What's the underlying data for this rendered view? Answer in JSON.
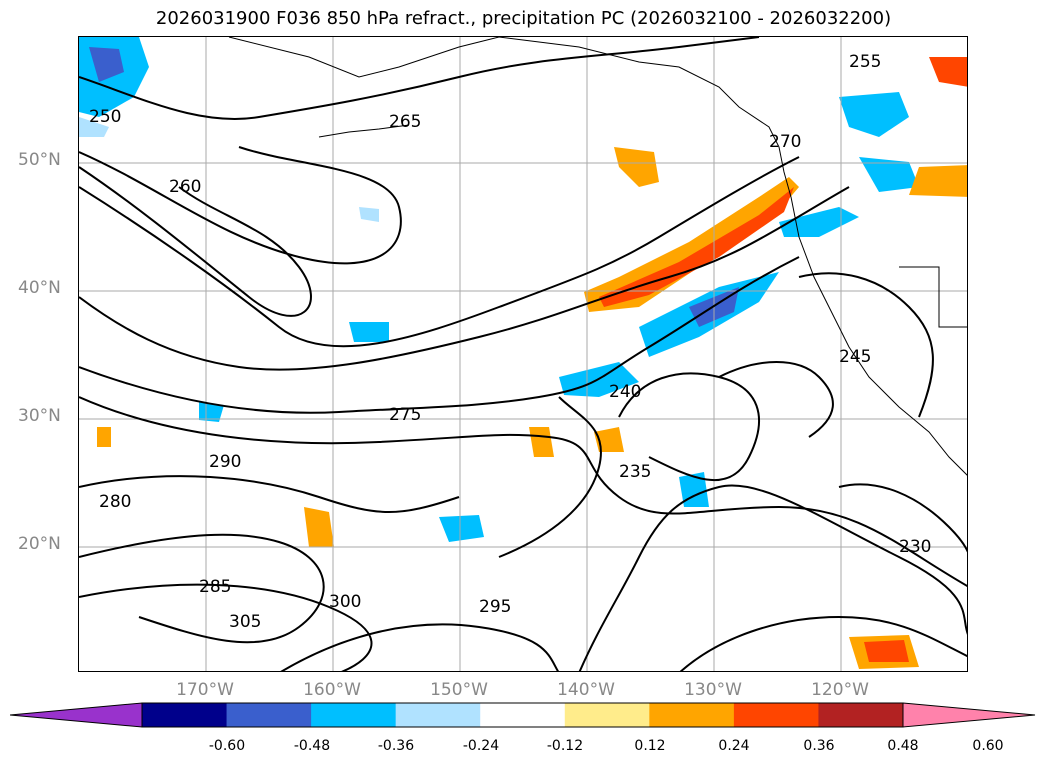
{
  "title": "2026031900 F036 850 hPa refract., precipitation PC (2026032100 - 2026032200)",
  "lat_labels": [
    "50°N",
    "40°N",
    "30°N",
    "20°N"
  ],
  "lon_labels": [
    "170°W",
    "160°W",
    "150°W",
    "140°W",
    "130°W",
    "120°W"
  ],
  "colorbar": {
    "ticks": [
      "-0.60",
      "-0.48",
      "-0.36",
      "-0.24",
      "-0.12",
      "0.12",
      "0.24",
      "0.36",
      "0.48",
      "0.60"
    ],
    "colors": [
      "#9932cc",
      "#00008b",
      "#3a5fcd",
      "#00bfff",
      "#b0e2ff",
      "#ffffff",
      "#ffec8b",
      "#ffa500",
      "#ff4500",
      "#b22222",
      "#ff82ab"
    ]
  },
  "contour_labels": [
    "250",
    "255",
    "260",
    "265",
    "270",
    "275",
    "280",
    "285",
    "290",
    "295",
    "300",
    "305",
    "230",
    "235",
    "240",
    "245"
  ]
}
